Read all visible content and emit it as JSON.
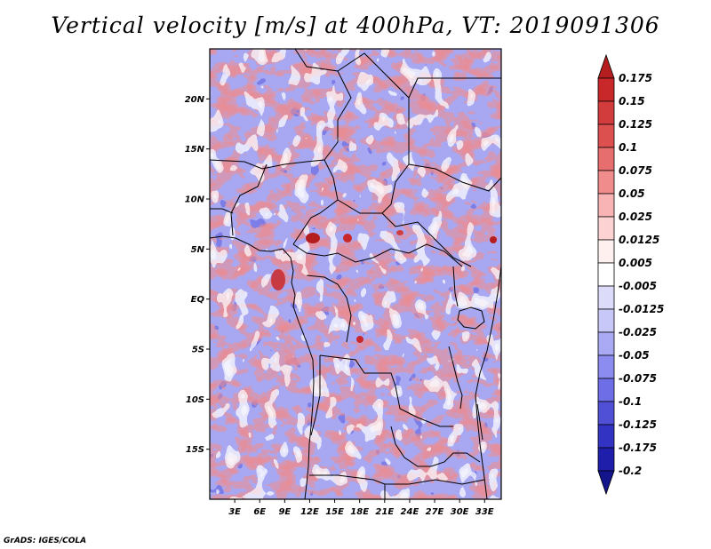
{
  "title": "Vertical velocity [m/s] at 400hPa, VT: 2019091306",
  "credit": "GrADS: IGES/COLA",
  "map": {
    "region": "Central Africa",
    "lon_range": [
      0,
      35
    ],
    "lat_range": [
      -20,
      25
    ],
    "lat_labels": [
      {
        "lat": 20,
        "text": "20N"
      },
      {
        "lat": 15,
        "text": "15N"
      },
      {
        "lat": 10,
        "text": "10N"
      },
      {
        "lat": 5,
        "text": "5N"
      },
      {
        "lat": 0,
        "text": "EQ"
      },
      {
        "lat": -5,
        "text": "5S"
      },
      {
        "lat": -10,
        "text": "10S"
      },
      {
        "lat": -15,
        "text": "15S"
      }
    ],
    "lon_labels": [
      {
        "lon": 3,
        "text": "3E"
      },
      {
        "lon": 6,
        "text": "6E"
      },
      {
        "lon": 9,
        "text": "9E"
      },
      {
        "lon": 12,
        "text": "12E"
      },
      {
        "lon": 15,
        "text": "15E"
      },
      {
        "lon": 18,
        "text": "18E"
      },
      {
        "lon": 21,
        "text": "21E"
      },
      {
        "lon": 24,
        "text": "24E"
      },
      {
        "lon": 27,
        "text": "27E"
      },
      {
        "lon": 30,
        "text": "30E"
      },
      {
        "lon": 33,
        "text": "33E"
      }
    ]
  },
  "colorbar": {
    "levels": [
      "0.175",
      "0.15",
      "0.125",
      "0.1",
      "0.075",
      "0.05",
      "0.025",
      "0.0125",
      "0.005",
      "-0.005",
      "-0.0125",
      "-0.025",
      "-0.05",
      "-0.075",
      "-0.1",
      "-0.125",
      "-0.175",
      "-0.2"
    ],
    "colors": [
      "#b41e1e",
      "#c8282a",
      "#d23c3c",
      "#dc5050",
      "#e66e6e",
      "#f08c8c",
      "#f8b4b4",
      "#fcd2d2",
      "#fff0f0",
      "#ffffff",
      "#dcdcfa",
      "#c8c8f8",
      "#aaaaf4",
      "#8c8cf0",
      "#6e6ee6",
      "#5050d7",
      "#3232c3",
      "#1e1eaa",
      "#14148c"
    ]
  }
}
